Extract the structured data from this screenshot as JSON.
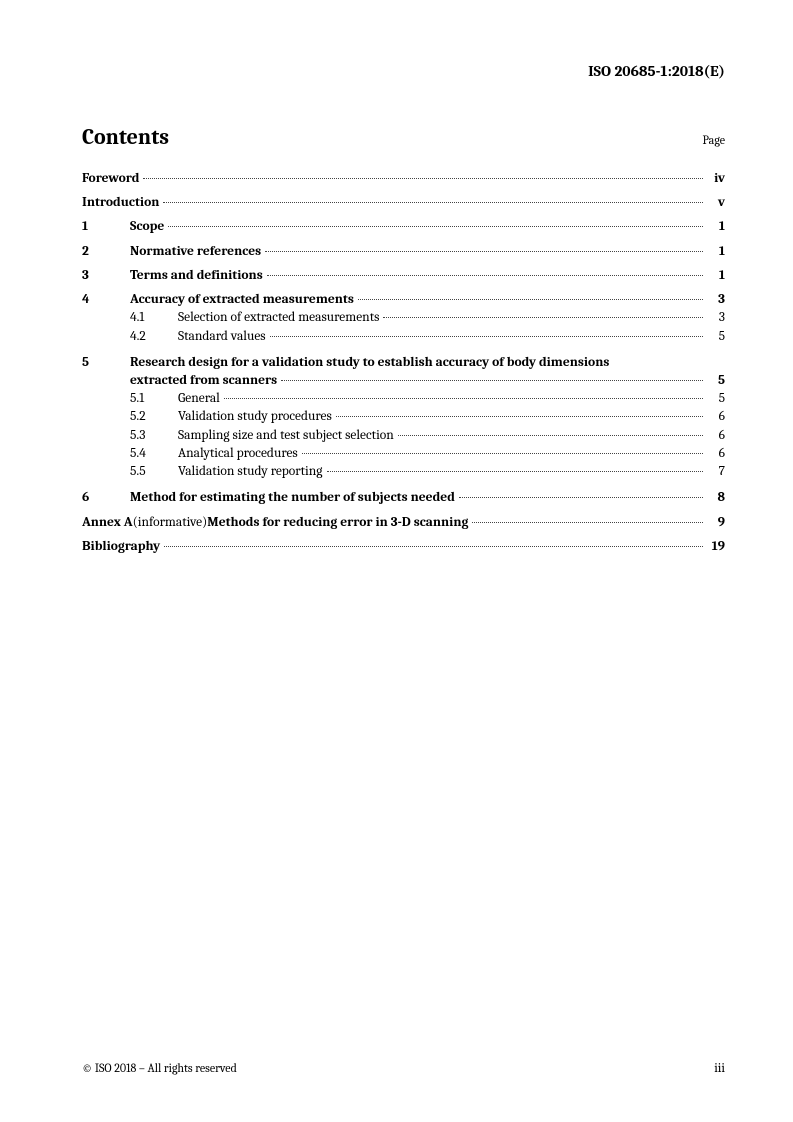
{
  "header": "ISO 20685-1:2018(E)",
  "contents_label": "Contents",
  "page_label": "Page",
  "entries": {
    "foreword": {
      "title": "Foreword",
      "page": "iv"
    },
    "introduction": {
      "title": "Introduction",
      "page": "v"
    },
    "s1": {
      "num": "1",
      "title": "Scope",
      "page": "1"
    },
    "s2": {
      "num": "2",
      "title": "Normative references",
      "page": "1"
    },
    "s3": {
      "num": "3",
      "title": "Terms and definitions",
      "page": "1"
    },
    "s4": {
      "num": "4",
      "title": "Accuracy of extracted measurements",
      "page": "3",
      "subs": {
        "a": {
          "num": "4.1",
          "title": "Selection of extracted measurements",
          "page": "3"
        },
        "b": {
          "num": "4.2",
          "title": "Standard values",
          "page": "5"
        }
      }
    },
    "s5": {
      "num": "5",
      "title_line1": "Research design for a validation study to establish accuracy of body dimensions",
      "title_line2": "extracted from scanners",
      "page": "5",
      "subs": {
        "a": {
          "num": "5.1",
          "title": "General",
          "page": "5"
        },
        "b": {
          "num": "5.2",
          "title": "Validation study procedures",
          "page": "6"
        },
        "c": {
          "num": "5.3",
          "title": "Sampling size and test subject selection",
          "page": "6"
        },
        "d": {
          "num": "5.4",
          "title": "Analytical procedures",
          "page": "6"
        },
        "e": {
          "num": "5.5",
          "title": "Validation study reporting",
          "page": "7"
        }
      }
    },
    "s6": {
      "num": "6",
      "title": "Method for estimating the number of subjects needed",
      "page": "8"
    },
    "annexA": {
      "label": "Annex A",
      "type": " (informative) ",
      "title": "Methods for reducing error in 3-D scanning",
      "page": "9"
    },
    "bibliography": {
      "title": "Bibliography",
      "page": "19"
    }
  },
  "footer": {
    "left": "© ISO 2018 – All rights reserved",
    "right": "iii"
  },
  "style": {
    "page_bg": "#ffffff",
    "text_color": "#000000",
    "leader_color": "#444444",
    "title_fontsize_pt": 16,
    "body_fontsize_pt": 10,
    "header_fontsize_pt": 11.5,
    "font_family": "Cambria/Georgia serif"
  }
}
